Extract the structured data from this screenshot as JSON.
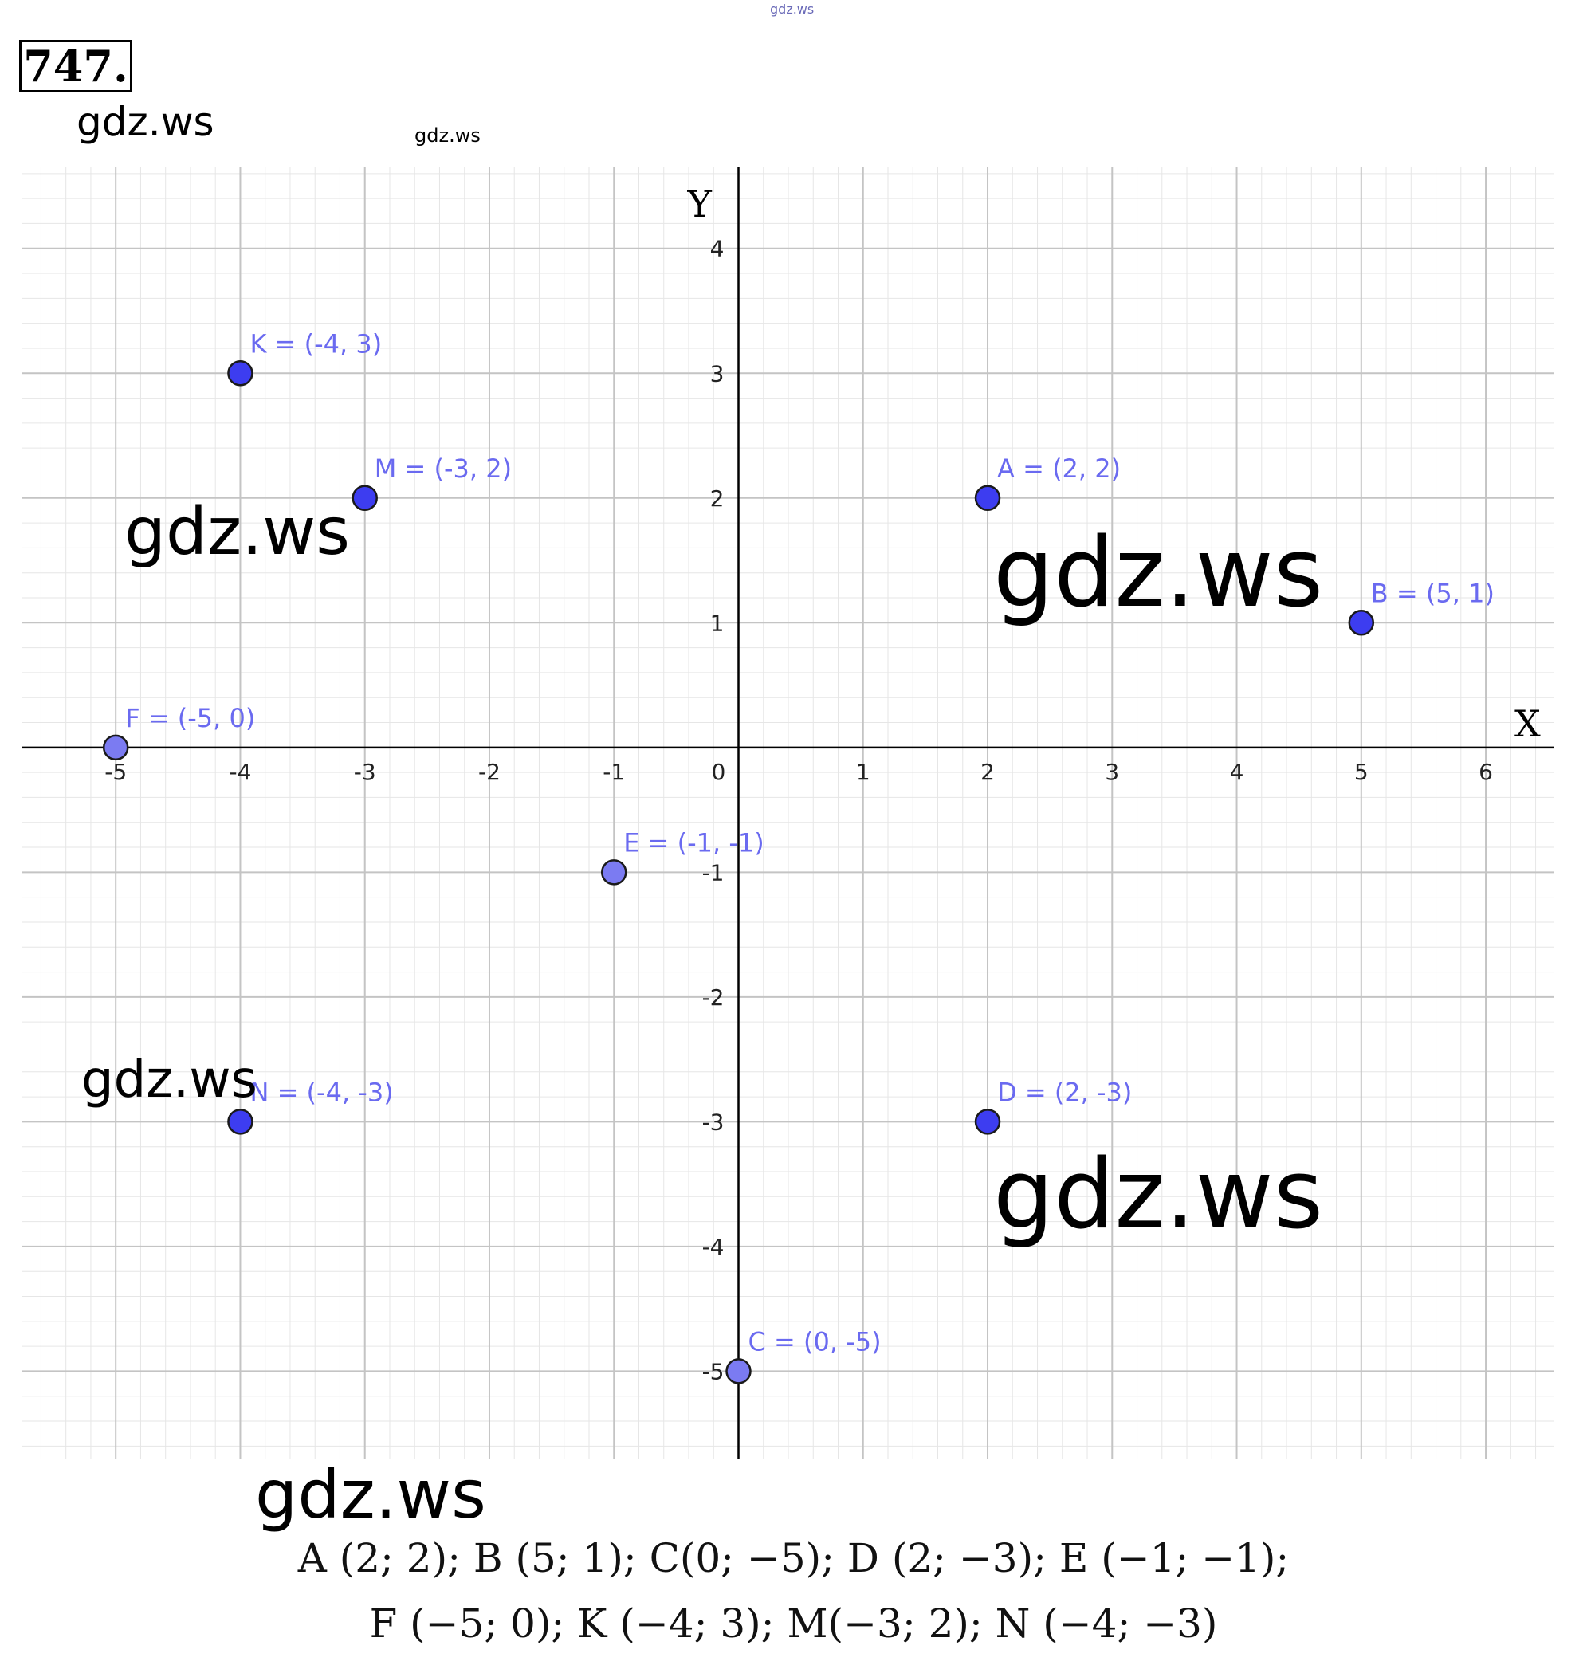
{
  "problem_number": "747.",
  "watermarks": [
    "gdz.ws",
    "gdz.ws",
    "gdz.ws",
    "gdz.ws",
    "gdz.ws",
    "gdz.ws",
    "gdz.ws",
    "gdz.ws"
  ],
  "answer": {
    "line1": "A (2; 2);  B (5; 1);  C(0;  −5);  D (2;  −3);  E (−1; −1);",
    "line2": "F (−5; 0);  K (−4; 3);  M(−3;  2);  N (−4;  −3)"
  },
  "colors": {
    "point_fill": "#3d3df0",
    "point_fill_light": "#7b7bf2",
    "label": "#6a6af0",
    "grid_major": "#c4c4c4",
    "grid_minor": "#e6e6e6",
    "axis": "#000000"
  },
  "chart_data": {
    "type": "scatter",
    "xlabel": "X",
    "ylabel": "Y",
    "xlim": [
      -5.75,
      6.55
    ],
    "ylim": [
      -5.7,
      4.65
    ],
    "x_ticks": [
      -5,
      -4,
      -3,
      -2,
      -1,
      0,
      1,
      2,
      3,
      4,
      5,
      6
    ],
    "y_ticks": [
      4,
      3,
      2,
      1,
      -1,
      -2,
      -3,
      -4,
      -5
    ],
    "grid": true,
    "points": [
      {
        "name": "K",
        "x": -4,
        "y": 3,
        "label": "K = (-4, 3)"
      },
      {
        "name": "M",
        "x": -3,
        "y": 2,
        "label": "M = (-3, 2)"
      },
      {
        "name": "A",
        "x": 2,
        "y": 2,
        "label": "A = (2, 2)"
      },
      {
        "name": "B",
        "x": 5,
        "y": 1,
        "label": "B = (5, 1)"
      },
      {
        "name": "F",
        "x": -5,
        "y": 0,
        "label": "F = (-5, 0)"
      },
      {
        "name": "E",
        "x": -1,
        "y": -1,
        "label": "E = (-1, -1)"
      },
      {
        "name": "N",
        "x": -4,
        "y": -3,
        "label": "N = (-4, -3)"
      },
      {
        "name": "D",
        "x": 2,
        "y": -3,
        "label": "D = (2, -3)"
      },
      {
        "name": "C",
        "x": 0,
        "y": -5,
        "label": "C = (0, -5)"
      }
    ]
  }
}
